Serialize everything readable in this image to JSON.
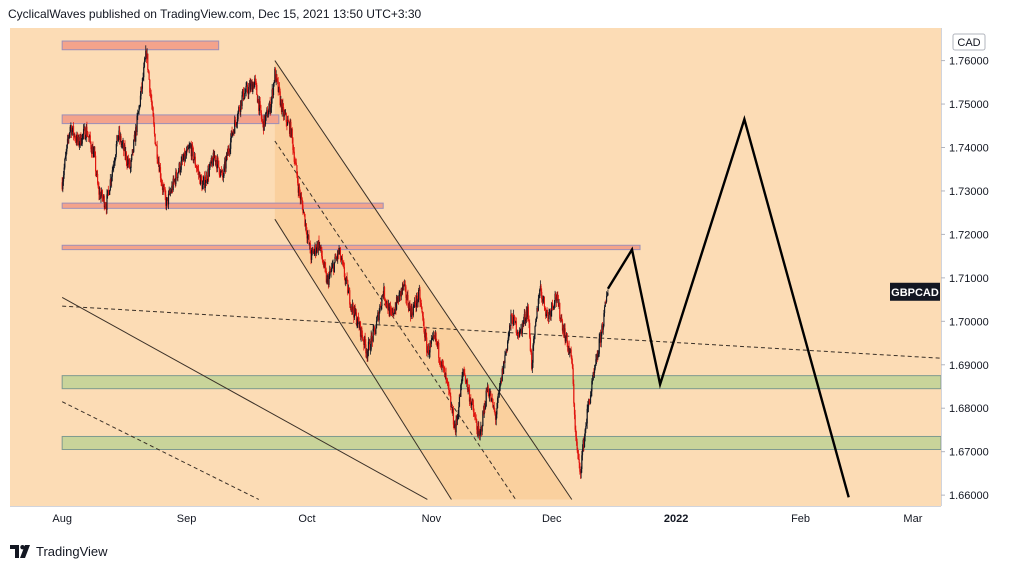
{
  "header": {
    "text": "CyclicalWaves published on TradingView.com, Dec 15, 2021 13:50 UTC+3:30"
  },
  "footer": {
    "brand": "TradingView"
  },
  "colors": {
    "background": "#fcdcb5",
    "zone_red": "#f4a38b",
    "zone_green": "#c9d49a",
    "channel_fill": "#f9ca94",
    "bull_candle": "#131722",
    "bear_candle": "#e0150f",
    "projection": "#000000"
  },
  "chart_data": {
    "type": "candlestick",
    "symbol": "GBPCAD",
    "currency": "CAD",
    "ylim": [
      1.6575,
      1.7675
    ],
    "yticks": [
      "1.76000",
      "1.75000",
      "1.74000",
      "1.73000",
      "1.72000",
      "1.71000",
      "1.70000",
      "1.69000",
      "1.68000",
      "1.67000",
      "1.66000"
    ],
    "xticks": [
      {
        "label": "Aug",
        "date": "2021-08-01"
      },
      {
        "label": "Sep",
        "date": "2021-09-01"
      },
      {
        "label": "Oct",
        "date": "2021-10-01"
      },
      {
        "label": "Nov",
        "date": "2021-11-01"
      },
      {
        "label": "Dec",
        "date": "2021-12-01"
      },
      {
        "label": "2022",
        "date": "2022-01-01"
      },
      {
        "label": "Feb",
        "date": "2022-02-01"
      },
      {
        "label": "Mar",
        "date": "2022-03-01"
      }
    ],
    "price_path": [
      [
        "2021-08-01",
        1.732
      ],
      [
        "2021-08-03",
        1.745
      ],
      [
        "2021-08-05",
        1.741
      ],
      [
        "2021-08-07",
        1.744
      ],
      [
        "2021-08-09",
        1.738
      ],
      [
        "2021-08-10",
        1.73
      ],
      [
        "2021-08-12",
        1.727
      ],
      [
        "2021-08-15",
        1.743
      ],
      [
        "2021-08-18",
        1.735
      ],
      [
        "2021-08-20",
        1.748
      ],
      [
        "2021-08-22",
        1.762
      ],
      [
        "2021-08-24",
        1.743
      ],
      [
        "2021-08-26",
        1.731
      ],
      [
        "2021-08-27",
        1.727
      ],
      [
        "2021-08-30",
        1.735
      ],
      [
        "2021-09-02",
        1.74
      ],
      [
        "2021-09-05",
        1.731
      ],
      [
        "2021-09-08",
        1.738
      ],
      [
        "2021-09-10",
        1.733
      ],
      [
        "2021-09-12",
        1.742
      ],
      [
        "2021-09-15",
        1.752
      ],
      [
        "2021-09-18",
        1.755
      ],
      [
        "2021-09-20",
        1.745
      ],
      [
        "2021-09-22",
        1.75
      ],
      [
        "2021-09-23",
        1.757
      ],
      [
        "2021-09-25",
        1.748
      ],
      [
        "2021-09-27",
        1.744
      ],
      [
        "2021-09-29",
        1.73
      ],
      [
        "2021-09-30",
        1.726
      ],
      [
        "2021-10-02",
        1.715
      ],
      [
        "2021-10-04",
        1.718
      ],
      [
        "2021-10-06",
        1.709
      ],
      [
        "2021-10-09",
        1.716
      ],
      [
        "2021-10-12",
        1.704
      ],
      [
        "2021-10-14",
        1.699
      ],
      [
        "2021-10-16",
        1.693
      ],
      [
        "2021-10-18",
        1.698
      ],
      [
        "2021-10-20",
        1.707
      ],
      [
        "2021-10-22",
        1.701
      ],
      [
        "2021-10-25",
        1.708
      ],
      [
        "2021-10-27",
        1.702
      ],
      [
        "2021-10-29",
        1.706
      ],
      [
        "2021-10-31",
        1.693
      ],
      [
        "2021-11-02",
        1.696
      ],
      [
        "2021-11-05",
        1.685
      ],
      [
        "2021-11-07",
        1.675
      ],
      [
        "2021-11-09",
        1.689
      ],
      [
        "2021-11-11",
        1.681
      ],
      [
        "2021-11-13",
        1.673
      ],
      [
        "2021-11-15",
        1.685
      ],
      [
        "2021-11-17",
        1.678
      ],
      [
        "2021-11-19",
        1.69
      ],
      [
        "2021-11-21",
        1.701
      ],
      [
        "2021-11-23",
        1.697
      ],
      [
        "2021-11-25",
        1.703
      ],
      [
        "2021-11-26",
        1.69
      ],
      [
        "2021-11-28",
        1.708
      ],
      [
        "2021-11-30",
        1.701
      ],
      [
        "2021-12-02",
        1.706
      ],
      [
        "2021-12-04",
        1.698
      ],
      [
        "2021-12-06",
        1.691
      ],
      [
        "2021-12-07",
        1.673
      ],
      [
        "2021-12-08",
        1.665
      ],
      [
        "2021-12-10",
        1.68
      ],
      [
        "2021-12-12",
        1.69
      ],
      [
        "2021-12-14",
        1.701
      ],
      [
        "2021-12-15",
        1.7075
      ]
    ],
    "projection": [
      [
        "2021-12-15",
        1.7075
      ],
      [
        "2021-12-21",
        1.7165
      ],
      [
        "2021-12-28",
        1.6855
      ],
      [
        "2022-01-18",
        1.7465
      ],
      [
        "2022-02-13",
        1.6595
      ]
    ],
    "zones": [
      {
        "kind": "resistance",
        "from": "2021-08-01",
        "to": "2021-09-09",
        "low": 1.7625,
        "high": 1.7645
      },
      {
        "kind": "resistance",
        "from": "2021-08-01",
        "to": "2021-09-24",
        "low": 1.7455,
        "high": 1.7475
      },
      {
        "kind": "resistance",
        "from": "2021-08-01",
        "to": "2021-10-20",
        "low": 1.726,
        "high": 1.7272
      },
      {
        "kind": "resistance",
        "from": "2021-08-01",
        "to": "2021-12-23",
        "low": 1.7165,
        "high": 1.7175
      },
      {
        "kind": "support",
        "from": "2021-08-01",
        "to": "2022-03-08",
        "low": 1.6845,
        "high": 1.6875
      },
      {
        "kind": "support",
        "from": "2021-08-01",
        "to": "2022-03-08",
        "low": 1.6705,
        "high": 1.6735
      }
    ],
    "trendlines": [
      {
        "style": "solid",
        "from": [
          "2021-09-23",
          1.76
        ],
        "to": [
          "2021-12-06",
          1.659
        ]
      },
      {
        "style": "solid",
        "from": [
          "2021-09-23",
          1.7235
        ],
        "to": [
          "2021-11-06",
          1.659
        ]
      },
      {
        "style": "dashed",
        "from": [
          "2021-09-23",
          1.7415
        ],
        "to": [
          "2021-11-22",
          1.659
        ]
      },
      {
        "style": "dashed",
        "from": [
          "2021-08-01",
          1.7035
        ],
        "to": [
          "2022-03-08",
          1.6915
        ]
      },
      {
        "style": "solid",
        "from": [
          "2021-08-01",
          1.7055
        ],
        "to": [
          "2021-10-31",
          1.659
        ]
      },
      {
        "style": "dashed",
        "from": [
          "2021-08-01",
          1.6815
        ],
        "to": [
          "2021-09-19",
          1.659
        ]
      }
    ],
    "last_label": "GBPCAD",
    "last_label_price": 1.7068
  }
}
